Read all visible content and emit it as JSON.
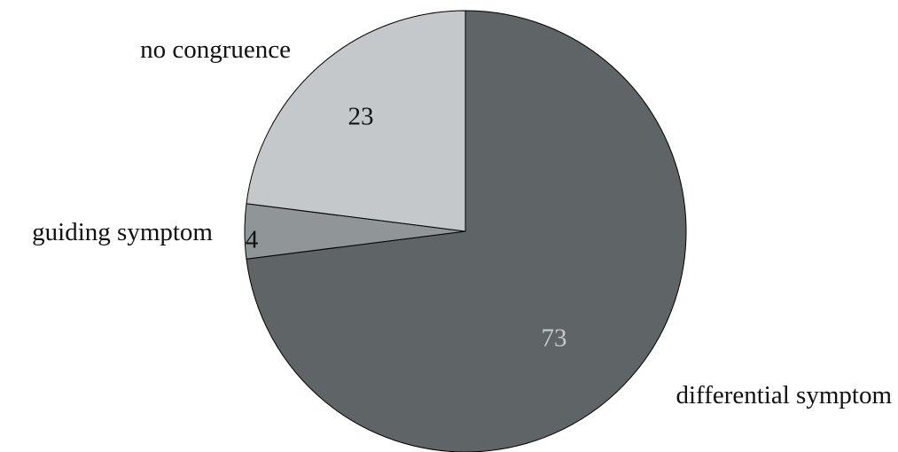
{
  "chart_data": {
    "type": "pie",
    "title": "",
    "start_angle_deg": 0,
    "direction": "clockwise",
    "slices": [
      {
        "label": "differential symptom",
        "value": 73,
        "color": "#5f6466",
        "value_label_color": "#c8cbcd"
      },
      {
        "label": "guiding symptom",
        "value": 4,
        "color": "#909597",
        "value_label_color": "#111111"
      },
      {
        "label": "no congruence",
        "value": 23,
        "color": "#c4c8ca",
        "value_label_color": "#111111"
      }
    ],
    "legend": "none",
    "outline_color": "#000000"
  }
}
